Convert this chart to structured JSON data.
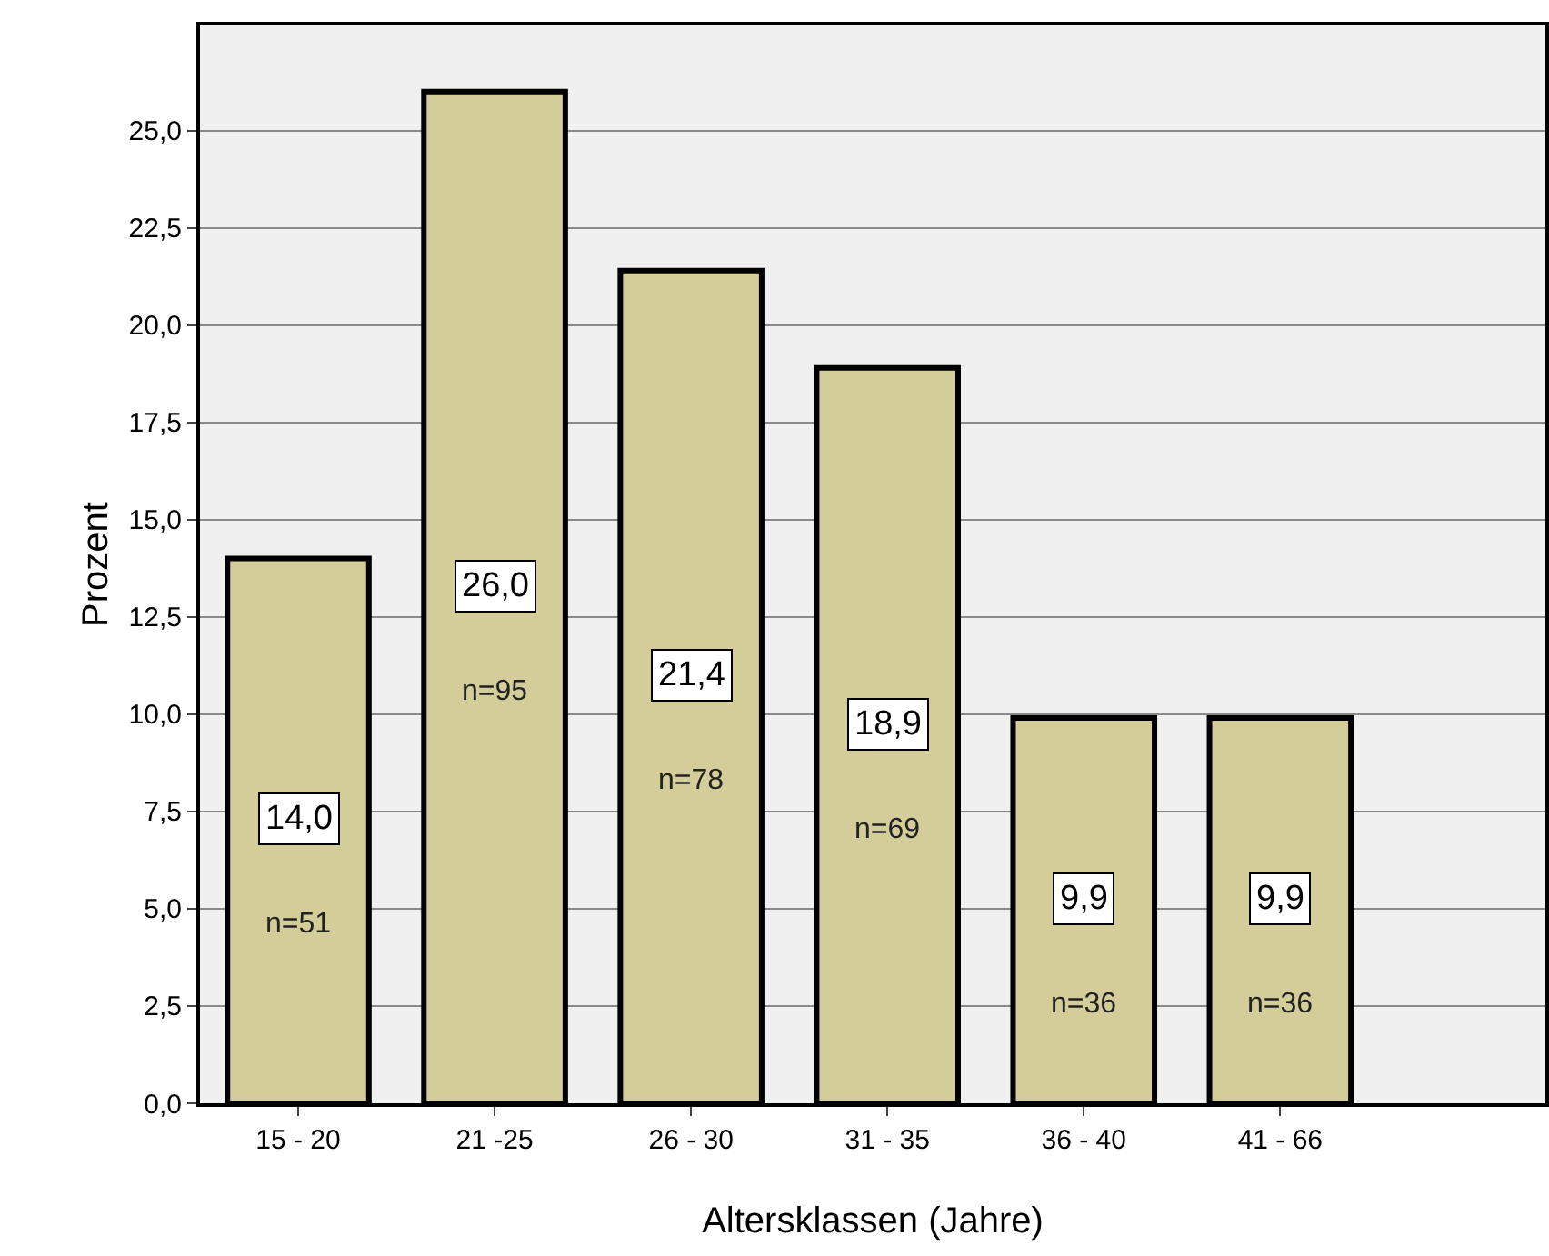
{
  "chart_data": {
    "type": "bar",
    "xlabel": "Altersklassen (Jahre)",
    "ylabel": "Prozent",
    "categories": [
      "15 - 20",
      "21 -25",
      "26 - 30",
      "31 - 35",
      "36 - 40",
      "41 - 66"
    ],
    "values": [
      14.0,
      26.0,
      21.4,
      18.9,
      9.9,
      9.9
    ],
    "value_labels": [
      "14,0",
      "26,0",
      "21,4",
      "18,9",
      "9,9",
      "9,9"
    ],
    "color": "#d3cd9a",
    "ylim": [
      0,
      27.7
    ],
    "yticks": [
      {
        "value": 0,
        "label": "0,0"
      },
      {
        "value": 2.5,
        "label": "2,5"
      },
      {
        "value": 5,
        "label": "5,0"
      },
      {
        "value": 7.5,
        "label": "7,5"
      },
      {
        "value": 10,
        "label": "10,0"
      },
      {
        "value": 12.5,
        "label": "12,5"
      },
      {
        "value": 15,
        "label": "15,0"
      },
      {
        "value": 17.5,
        "label": "17,5"
      },
      {
        "value": 20,
        "label": "20,0"
      },
      {
        "value": 22.5,
        "label": "22,5"
      },
      {
        "value": 25,
        "label": "25,0"
      }
    ],
    "grid": "y",
    "annotations": [
      "n=51",
      "n=95",
      "n=78",
      "n=69",
      "n=36",
      "n=36"
    ]
  }
}
